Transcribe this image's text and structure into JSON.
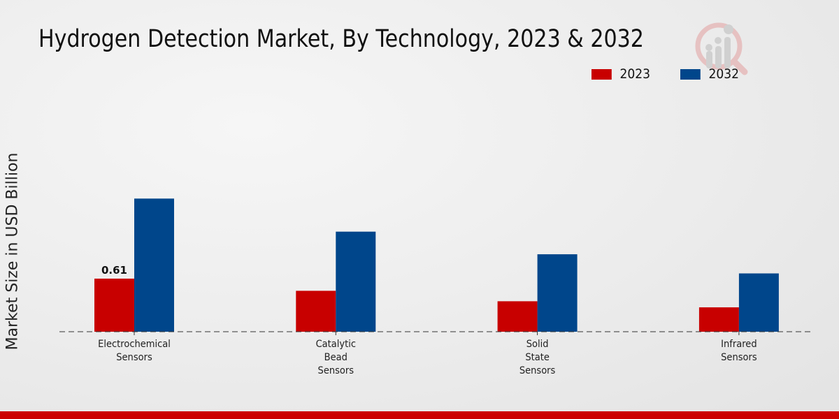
{
  "chart_data": {
    "type": "bar",
    "title": "Hydrogen Detection Market, By Technology, 2023 & 2032",
    "xlabel": "",
    "ylabel": "Market Size in USD Billion",
    "categories": [
      [
        "Electrochemical",
        "Sensors"
      ],
      [
        "Catalytic",
        "Bead",
        "Sensors"
      ],
      [
        "Solid",
        "State",
        "Sensors"
      ],
      [
        "Infrared",
        "Sensors"
      ]
    ],
    "series": [
      {
        "name": "2023",
        "color": "#c80000",
        "values": [
          0.61,
          0.47,
          0.35,
          0.28
        ]
      },
      {
        "name": "2032",
        "color": "#00468b",
        "values": [
          1.53,
          1.15,
          0.89,
          0.67
        ]
      }
    ],
    "data_labels": [
      {
        "series": 0,
        "index": 0,
        "text": "0.61"
      }
    ],
    "ylim": [
      0,
      3.2
    ],
    "grid": false,
    "legend": "top-right"
  }
}
